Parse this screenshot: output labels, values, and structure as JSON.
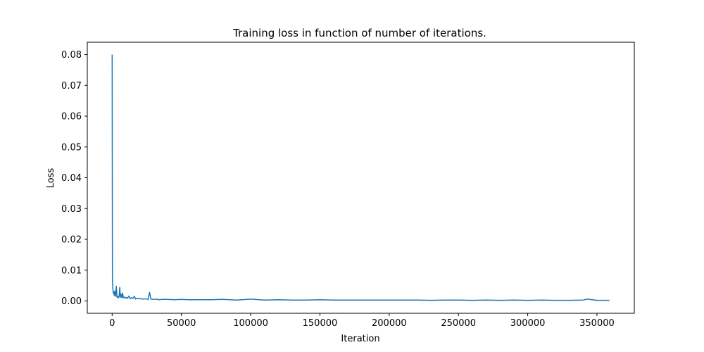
{
  "chart_data": {
    "type": "line",
    "title": "Training loss in function of number of iterations.",
    "xlabel": "Iteration",
    "ylabel": "Loss",
    "xlim": [
      -17950,
      376950
    ],
    "ylim": [
      -0.004,
      0.084
    ],
    "xticks": [
      0,
      50000,
      100000,
      150000,
      200000,
      250000,
      300000,
      350000
    ],
    "xtick_labels": [
      "0",
      "50000",
      "100000",
      "150000",
      "200000",
      "250000",
      "300000",
      "350000"
    ],
    "yticks": [
      0.0,
      0.01,
      0.02,
      0.03,
      0.04,
      0.05,
      0.06,
      0.07,
      0.08
    ],
    "ytick_labels": [
      "0.00",
      "0.01",
      "0.02",
      "0.03",
      "0.04",
      "0.05",
      "0.06",
      "0.07",
      "0.08"
    ],
    "grid": false,
    "series": [
      {
        "color": "#1f77b4",
        "x": [
          0,
          200,
          500,
          800,
          1200,
          1500,
          2000,
          2500,
          3000,
          3500,
          4000,
          4500,
          5000,
          5500,
          6000,
          6500,
          7000,
          7500,
          8000,
          8500,
          9000,
          10000,
          11000,
          12000,
          13000,
          14000,
          15000,
          16000,
          17000,
          18000,
          19000,
          20000,
          22000,
          24000,
          26000,
          27000,
          28000,
          30000,
          32000,
          34000,
          36000,
          40000,
          45000,
          50000,
          55000,
          60000,
          70000,
          80000,
          90000,
          100000,
          110000,
          120000,
          130000,
          140000,
          150000,
          160000,
          170000,
          180000,
          190000,
          200000,
          210000,
          220000,
          230000,
          240000,
          250000,
          260000,
          270000,
          280000,
          290000,
          300000,
          310000,
          320000,
          330000,
          340000,
          343000,
          350000,
          359000
        ],
        "y": [
          0.08,
          0.0068,
          0.004,
          0.0025,
          0.003,
          0.0018,
          0.0032,
          0.0015,
          0.0048,
          0.0012,
          0.0016,
          0.001,
          0.0014,
          0.0044,
          0.0012,
          0.0022,
          0.001,
          0.0026,
          0.0011,
          0.0013,
          0.0009,
          0.0012,
          0.0008,
          0.0016,
          0.0007,
          0.0011,
          0.0008,
          0.0015,
          0.0006,
          0.0009,
          0.0007,
          0.0008,
          0.0006,
          0.0007,
          0.0005,
          0.0028,
          0.0006,
          0.0005,
          0.0006,
          0.0004,
          0.0005,
          0.0005,
          0.0004,
          0.0005,
          0.0004,
          0.0004,
          0.0004,
          0.0005,
          0.0003,
          0.0006,
          0.0003,
          0.0004,
          0.0003,
          0.0003,
          0.0004,
          0.0003,
          0.0003,
          0.0003,
          0.0003,
          0.0003,
          0.0003,
          0.0003,
          0.0002,
          0.0003,
          0.0003,
          0.0002,
          0.0003,
          0.0002,
          0.0003,
          0.0002,
          0.0003,
          0.0002,
          0.0002,
          0.0003,
          0.0006,
          0.0002,
          0.0002
        ]
      }
    ]
  }
}
